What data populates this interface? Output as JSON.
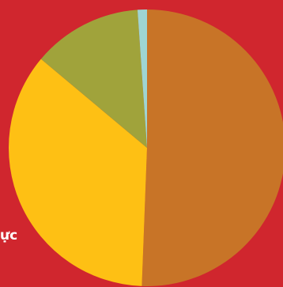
{
  "chart_data": {
    "type": "pie",
    "title": "",
    "slices": [
      {
        "value": 50.6,
        "color": "#c87427"
      },
      {
        "value": 35.5,
        "color": "#fec014"
      },
      {
        "value": 12.8,
        "color": "#a0a33b"
      },
      {
        "value": 1.1,
        "color": "#9ed5d2"
      }
    ],
    "start_direction": "top",
    "direction": "clockwise",
    "background_color": "#d0262e"
  },
  "edge_text": "ực"
}
